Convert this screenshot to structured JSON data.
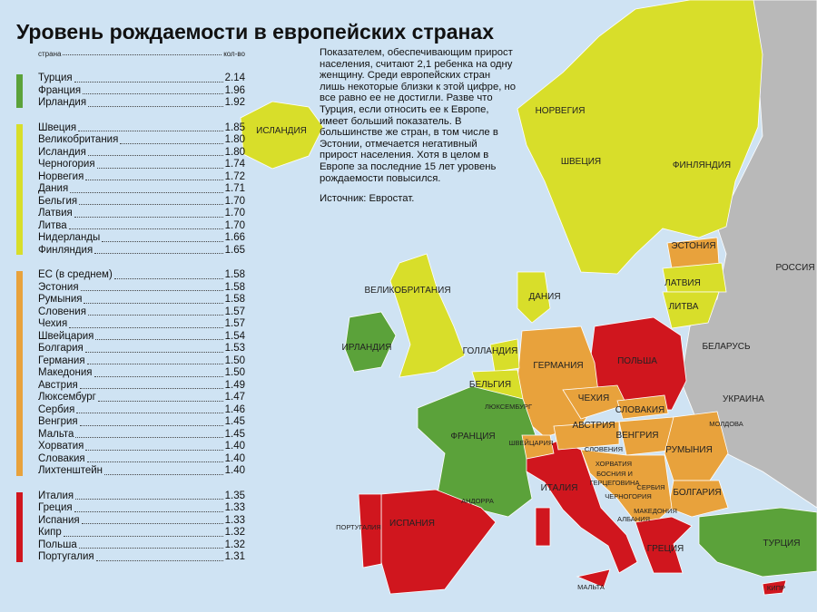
{
  "title": "Уровень рождаемости в европейских странах",
  "list_header": {
    "country": "страна",
    "value": "кол-во"
  },
  "groups": [
    {
      "color": "#5ba23a",
      "rows": [
        [
          "Турция",
          "2.14"
        ],
        [
          "Франция",
          "1.96"
        ],
        [
          "Ирландия",
          "1.92"
        ]
      ]
    },
    {
      "color": "#d8de2a",
      "rows": [
        [
          "Швеция",
          "1.85"
        ],
        [
          "Великобритания",
          "1.80"
        ],
        [
          "Исландия",
          "1.80"
        ],
        [
          "Черногория",
          "1.74"
        ],
        [
          "Норвегия",
          "1.72"
        ],
        [
          "Дания",
          "1.71"
        ],
        [
          "Бельгия",
          "1.70"
        ],
        [
          "Латвия",
          "1.70"
        ],
        [
          "Литва",
          "1.70"
        ],
        [
          "Нидерланды",
          "1.66"
        ],
        [
          "Финляндия",
          "1.65"
        ]
      ]
    },
    {
      "color": "#e8a23c",
      "rows": [
        [
          "ЕС (в среднем)",
          "1.58"
        ],
        [
          "Эстония",
          "1.58"
        ],
        [
          "Румыния",
          "1.58"
        ],
        [
          "Словения",
          "1.57"
        ],
        [
          "Чехия",
          "1.57"
        ],
        [
          "Швейцария",
          "1.54"
        ],
        [
          "Болгария",
          "1.53"
        ],
        [
          "Германия",
          "1.50"
        ],
        [
          "Македония",
          "1.50"
        ],
        [
          "Австрия",
          "1.49"
        ],
        [
          "Люксембург",
          "1.47"
        ],
        [
          "Сербия",
          "1.46"
        ],
        [
          "Венгрия",
          "1.45"
        ],
        [
          "Мальта",
          "1.45"
        ],
        [
          "Хорватия",
          "1.40"
        ],
        [
          "Словакия",
          "1.40"
        ],
        [
          "Лихтенштейн",
          "1.40"
        ]
      ]
    },
    {
      "color": "#d0161e",
      "rows": [
        [
          "Италия",
          "1.35"
        ],
        [
          "Греция",
          "1.33"
        ],
        [
          "Испания",
          "1.33"
        ],
        [
          "Кипр",
          "1.32"
        ],
        [
          "Польша",
          "1.32"
        ],
        [
          "Португалия",
          "1.31"
        ]
      ]
    }
  ],
  "description": "Показателем, обеспечивающим прирост населения, считают 2,1 ребенка на одну женщину. Среди европейских стран лишь некоторые близки к этой цифре, но все равно ее не достигли. Разве что Турция, если относить ее к Европе, имеет больший показатель. В большинстве же стран, в том числе в Эстонии, отмечается негативный прирост населения. Хотя в целом в Европе за последние 15 лет уровень рождаемости повысился.",
  "source": "Источник: Евростат.",
  "map_labels": [
    "ИСЛАНДИЯ",
    "НОРВЕГИЯ",
    "ШВЕЦИЯ",
    "ФИНЛЯНДИЯ",
    "РОССИЯ",
    "ЭСТОНИЯ",
    "ЛАТВИЯ",
    "ЛИТВА",
    "ВЕЛИКОБРИТАНИЯ",
    "ДАНИЯ",
    "ИРЛАНДИЯ",
    "ГОЛЛАНДИЯ",
    "БЕЛАРУСЬ",
    "ПОЛЬША",
    "ГЕРМАНИЯ",
    "БЕЛЬГИЯ",
    "УКРАИНА",
    "ЧЕХИЯ",
    "ЛЮКСЕМБУРГ",
    "СЛОВАКИЯ",
    "МОЛДОВА",
    "АВСТРИЯ",
    "ФРАНЦИЯ",
    "ВЕНГРИЯ",
    "ШВЕЙЦАРИЯ",
    "СЛОВЕНИЯ",
    "РУМЫНИЯ",
    "ХОРВАТИЯ",
    "БОСНИЯ И\nГЕРЦЕГОВИНА",
    "СЕРБИЯ",
    "ЧЕРНОГОРИЯ",
    "БОЛГАРИЯ",
    "АНДОРРА",
    "ИТАЛИЯ",
    "МАКЕДОНИЯ",
    "АЛБАНИЯ",
    "ПОРТУГАЛИЯ",
    "ИСПАНИЯ",
    "ТУРЦИЯ",
    "ГРЕЦИЯ",
    "МАЛЬТА",
    "КИПР"
  ]
}
